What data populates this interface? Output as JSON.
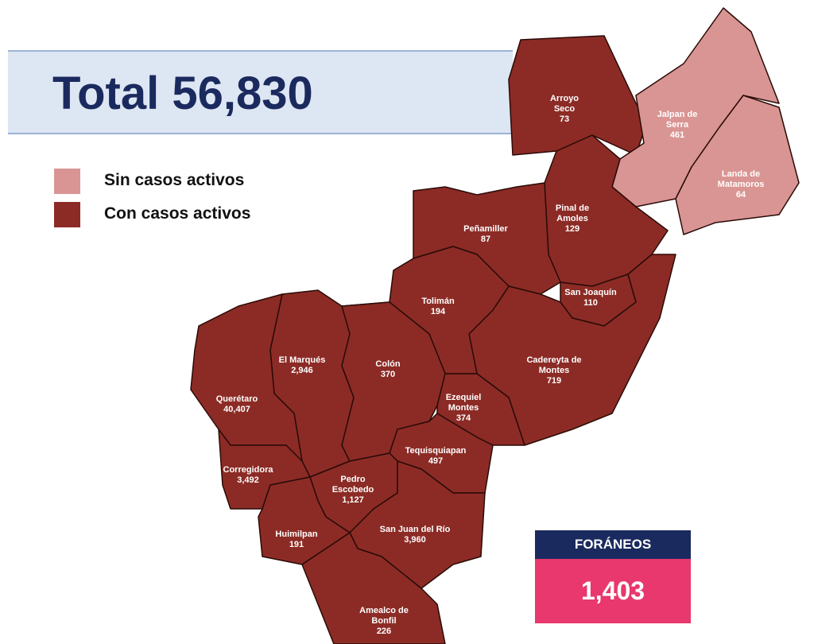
{
  "title": "Total 56,830",
  "legend": [
    {
      "label": "Sin casos activos",
      "color": "#d99593"
    },
    {
      "label": "Con casos activos",
      "color": "#8c2b25"
    }
  ],
  "regions": [
    {
      "name": "Arroyo Seco",
      "value": "73",
      "color": "#8c2b25"
    },
    {
      "name": "Jalpan de Serra",
      "value": "461",
      "color": "#d99593"
    },
    {
      "name": "Landa de Matamoros",
      "value": "64",
      "color": "#d99593"
    },
    {
      "name": "Pinal de Amoles",
      "value": "129",
      "color": "#8c2b25"
    },
    {
      "name": "Peñamiller",
      "value": "87",
      "color": "#8c2b25"
    },
    {
      "name": "San Joaquín",
      "value": "110",
      "color": "#8c2b25"
    },
    {
      "name": "Cadereyta de Montes",
      "value": "719",
      "color": "#8c2b25"
    },
    {
      "name": "Tolimán",
      "value": "194",
      "color": "#8c2b25"
    },
    {
      "name": "El Marqués",
      "value": "2,946",
      "color": "#8c2b25"
    },
    {
      "name": "Colón",
      "value": "370",
      "color": "#8c2b25"
    },
    {
      "name": "Querétaro",
      "value": "40,407",
      "color": "#8c2b25"
    },
    {
      "name": "Ezequiel Montes",
      "value": "374",
      "color": "#8c2b25"
    },
    {
      "name": "Tequisquiapan",
      "value": "497",
      "color": "#8c2b25"
    },
    {
      "name": "Corregidora",
      "value": "3,492",
      "color": "#8c2b25"
    },
    {
      "name": "Pedro Escobedo",
      "value": "1,127",
      "color": "#8c2b25"
    },
    {
      "name": "Huimilpan",
      "value": "191",
      "color": "#8c2b25"
    },
    {
      "name": "San Juan del Río",
      "value": "3,960",
      "color": "#8c2b25"
    },
    {
      "name": "Amealco de Bonfil",
      "value": "226",
      "color": "#8c2b25"
    }
  ],
  "foraneos": {
    "label": "FORÁNEOS",
    "value": "1,403"
  }
}
